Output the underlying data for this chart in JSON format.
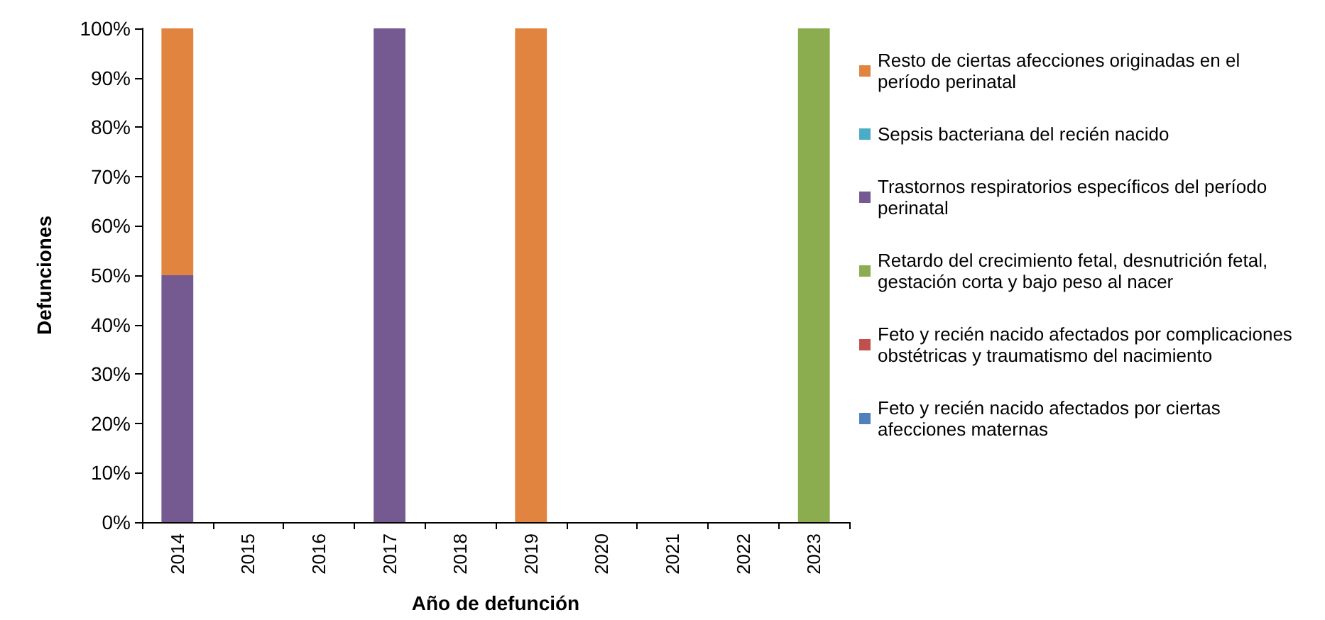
{
  "chart_data": {
    "type": "bar",
    "stacked": true,
    "xlabel": "Año de defunción",
    "ylabel": "Defunciones",
    "categories": [
      "2014",
      "2015",
      "2016",
      "2017",
      "2018",
      "2019",
      "2020",
      "2021",
      "2022",
      "2023"
    ],
    "ylim": [
      0,
      100
    ],
    "yticks": [
      {
        "value": 0,
        "label": "0%"
      },
      {
        "value": 10,
        "label": "10%"
      },
      {
        "value": 20,
        "label": "20%"
      },
      {
        "value": 30,
        "label": "30%"
      },
      {
        "value": 40,
        "label": "40%"
      },
      {
        "value": 50,
        "label": "50%"
      },
      {
        "value": 60,
        "label": "60%"
      },
      {
        "value": 70,
        "label": "70%"
      },
      {
        "value": 80,
        "label": "80%"
      },
      {
        "value": 90,
        "label": "90%"
      },
      {
        "value": 100,
        "label": "100%"
      }
    ],
    "grid": false,
    "legend": "right",
    "series": [
      {
        "name": "Feto y recién nacido afectados por ciertas afecciones maternas",
        "color": "#4f81bd",
        "values": [
          null,
          null,
          null,
          null,
          null,
          null,
          null,
          null,
          null,
          null
        ]
      },
      {
        "name": "Feto y recién nacido afectados por complicaciones obstétricas y traumatismo del nacimiento",
        "color": "#c0504d",
        "values": [
          null,
          null,
          null,
          null,
          null,
          null,
          null,
          null,
          null,
          null
        ]
      },
      {
        "name": "Retardo del crecimiento fetal, desnutrición fetal, gestación corta y bajo peso al nacer",
        "color": "#8bac4f",
        "values": [
          null,
          null,
          null,
          null,
          null,
          null,
          null,
          null,
          null,
          100
        ]
      },
      {
        "name": "Trastornos respiratorios específicos del período perinatal",
        "color": "#755a92",
        "values": [
          50,
          null,
          null,
          100,
          null,
          null,
          null,
          null,
          null,
          null
        ]
      },
      {
        "name": "Sepsis bacteriana del recién nacido",
        "color": "#4bacc6",
        "values": [
          null,
          null,
          null,
          null,
          null,
          null,
          null,
          null,
          null,
          null
        ]
      },
      {
        "name": "Resto de ciertas afecciones originadas en el período perinatal",
        "color": "#e0843f",
        "values": [
          50,
          null,
          null,
          null,
          null,
          100,
          null,
          null,
          null,
          null
        ]
      }
    ]
  }
}
